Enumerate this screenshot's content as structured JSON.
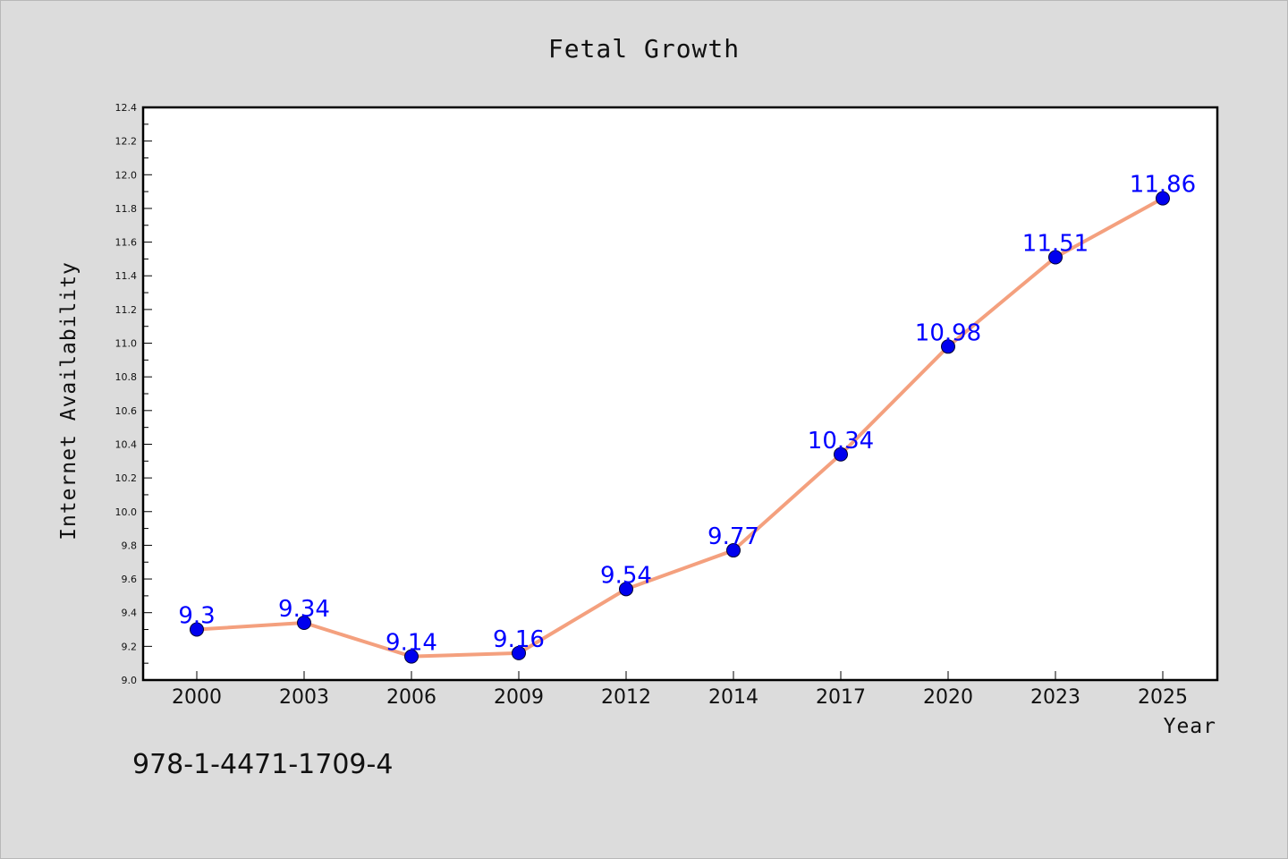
{
  "chart_data": {
    "type": "line",
    "title": "Fetal Growth",
    "xlabel": "Year",
    "ylabel": "Internet Availability",
    "categories": [
      "2000",
      "2003",
      "2006",
      "2009",
      "2012",
      "2014",
      "2017",
      "2020",
      "2023",
      "2025"
    ],
    "series": [
      {
        "values": [
          9.3,
          9.34,
          9.14,
          9.16,
          9.54,
          9.77,
          10.34,
          10.98,
          11.51,
          11.86
        ],
        "data_labels": [
          "9.3",
          "9.34",
          "9.14",
          "9.16",
          "9.54",
          "9.77",
          "10.34",
          "10.98",
          "11.51",
          "11.86"
        ],
        "line_color": "#f4a07e",
        "marker_color": "#0000ee",
        "label_color": "#0000ff"
      }
    ],
    "ylim": [
      9.0,
      12.4
    ],
    "yticks": [
      "9.0",
      "9.2",
      "9.4",
      "9.6",
      "9.8",
      "10.0",
      "10.2",
      "10.4",
      "10.6",
      "10.8",
      "11.0",
      "11.2",
      "11.4",
      "11.6",
      "11.8",
      "12.0",
      "12.2",
      "12.4"
    ],
    "grid": false,
    "legend": "none"
  },
  "footnote": "978-1-4471-1709-4"
}
